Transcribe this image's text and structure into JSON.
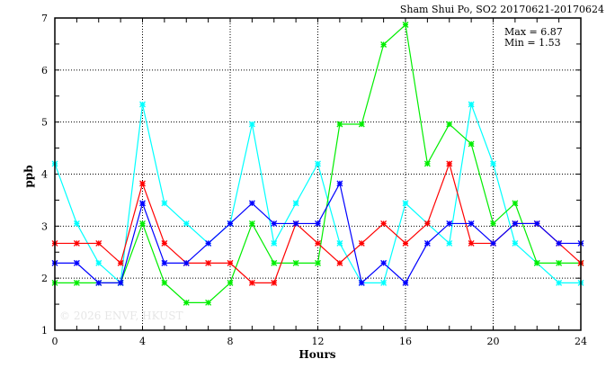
{
  "chart_data": {
    "type": "line",
    "title": "Sham Shui Po, SO2 20170621-20170624",
    "xlabel": "Hours",
    "ylabel": "ppb",
    "xlim": [
      0,
      24
    ],
    "ylim": [
      1,
      7
    ],
    "xticks": [
      "0",
      "4",
      "8",
      "12",
      "16",
      "20",
      "24"
    ],
    "yticks": [
      "1",
      "2",
      "3",
      "4",
      "5",
      "6",
      "7"
    ],
    "grid": true,
    "annotations": {
      "max": "Max = 6.87",
      "min": "Min = 1.53"
    },
    "watermark": "© 2026  ENVF, HKUST",
    "x": [
      0,
      1,
      2,
      3,
      4,
      5,
      6,
      7,
      8,
      9,
      10,
      11,
      12,
      13,
      14,
      15,
      16,
      17,
      18,
      19,
      20,
      21,
      22,
      23,
      24
    ],
    "series": [
      {
        "name": "cyan",
        "color": "#00ffff",
        "values": [
          4.2,
          3.05,
          2.29,
          1.91,
          5.34,
          3.44,
          3.05,
          2.67,
          3.05,
          4.96,
          2.67,
          3.44,
          4.2,
          2.67,
          1.91,
          1.91,
          3.44,
          3.05,
          2.67,
          5.34,
          4.2,
          2.67,
          2.29,
          1.91,
          1.91
        ]
      },
      {
        "name": "green",
        "color": "#00ee00",
        "values": [
          1.91,
          1.91,
          1.91,
          1.91,
          3.05,
          1.91,
          1.53,
          1.53,
          1.91,
          3.05,
          2.29,
          2.29,
          2.29,
          4.96,
          4.96,
          6.49,
          6.87,
          4.2,
          4.96,
          4.58,
          3.05,
          3.44,
          2.29,
          2.29,
          2.29
        ]
      },
      {
        "name": "red",
        "color": "#ff0000",
        "values": [
          2.67,
          2.67,
          2.67,
          2.29,
          3.82,
          2.67,
          2.29,
          2.29,
          2.29,
          1.91,
          1.91,
          3.05,
          2.67,
          2.29,
          2.67,
          3.05,
          2.67,
          3.05,
          4.2,
          2.67,
          2.67,
          3.05,
          3.05,
          2.67,
          2.29
        ]
      },
      {
        "name": "blue",
        "color": "#0000ff",
        "values": [
          2.29,
          2.29,
          1.91,
          1.91,
          3.44,
          2.29,
          2.29,
          2.67,
          3.05,
          3.44,
          3.05,
          3.05,
          3.05,
          3.82,
          1.91,
          2.29,
          1.91,
          2.67,
          3.05,
          3.05,
          2.67,
          3.05,
          3.05,
          2.67,
          2.67
        ]
      }
    ]
  }
}
